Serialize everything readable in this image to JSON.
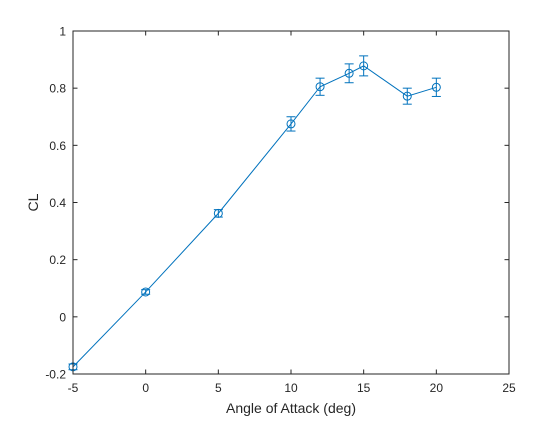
{
  "chart_data": {
    "type": "line",
    "title": "",
    "xlabel": "Angle of Attack (deg)",
    "ylabel": "CL",
    "xlim": [
      -5,
      25
    ],
    "ylim": [
      -0.2,
      1
    ],
    "xticks": [
      -5,
      0,
      5,
      10,
      15,
      20,
      25
    ],
    "yticks": [
      -0.2,
      0,
      0.2,
      0.4,
      0.6,
      0.8,
      1
    ],
    "xtick_labels": [
      "-5",
      "0",
      "5",
      "10",
      "15",
      "20",
      "25"
    ],
    "ytick_labels": [
      "-0.2",
      "0",
      "0.2",
      "0.4",
      "0.6",
      "0.8",
      "1"
    ],
    "grid": false,
    "box": true,
    "series": [
      {
        "color": "#0072BD",
        "marker": "circle-open",
        "x": [
          -5,
          0,
          5,
          10,
          12,
          14,
          15,
          18,
          20
        ],
        "y": [
          -0.175,
          0.087,
          0.362,
          0.675,
          0.805,
          0.852,
          0.878,
          0.772,
          0.803
        ],
        "error": [
          0.01,
          0.008,
          0.013,
          0.025,
          0.03,
          0.033,
          0.035,
          0.028,
          0.032
        ]
      }
    ]
  }
}
